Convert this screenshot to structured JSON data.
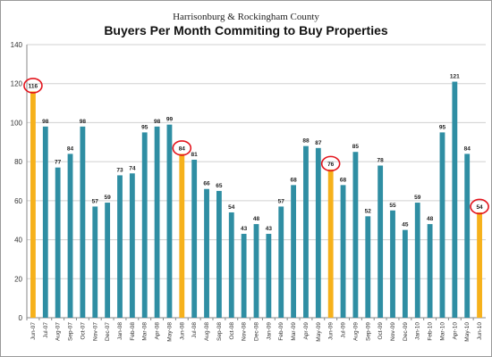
{
  "chart_data": {
    "type": "bar",
    "subtitle": "Harrisonburg & Rockingham County",
    "title": "Buyers Per Month Commiting to Buy Properties",
    "xlabel": "",
    "ylabel": "",
    "ylim": [
      0,
      140
    ],
    "yticks": [
      0,
      20,
      40,
      60,
      80,
      100,
      120,
      140
    ],
    "grid": true,
    "categories": [
      "Jun-07",
      "Jul-07",
      "Aug-07",
      "Sep-07",
      "Oct-07",
      "Nov-07",
      "Dec-07",
      "Jan-08",
      "Feb-08",
      "Mar-08",
      "Apr-08",
      "May-08",
      "Jun-08",
      "Jul-08",
      "Aug-08",
      "Sep-08",
      "Oct-08",
      "Nov-08",
      "Dec-08",
      "Jan-09",
      "Feb-09",
      "Mar-09",
      "Apr-09",
      "May-09",
      "Jun-09",
      "Jul-09",
      "Aug-09",
      "Sep-09",
      "Oct-09",
      "Nov-09",
      "Dec-09",
      "Jan-10",
      "Feb-10",
      "Mar-10",
      "Apr-10",
      "May-10",
      "Jun-10"
    ],
    "values": [
      116,
      98,
      77,
      84,
      98,
      57,
      59,
      73,
      74,
      95,
      98,
      99,
      84,
      81,
      66,
      65,
      54,
      43,
      48,
      43,
      57,
      68,
      88,
      87,
      76,
      68,
      85,
      52,
      78,
      55,
      45,
      59,
      48,
      95,
      121,
      84,
      54
    ],
    "highlighted_categories": [
      "Jun-07",
      "Jun-08",
      "Jun-09",
      "Jun-10"
    ],
    "circled_labels": [
      "Jun-07",
      "Jun-08",
      "Jun-09",
      "Jun-10"
    ],
    "colors": {
      "bar": "#2F8EA3",
      "highlight": "#F6B11B",
      "circle": "#E3161E",
      "grid": "#d0d0d0"
    }
  }
}
